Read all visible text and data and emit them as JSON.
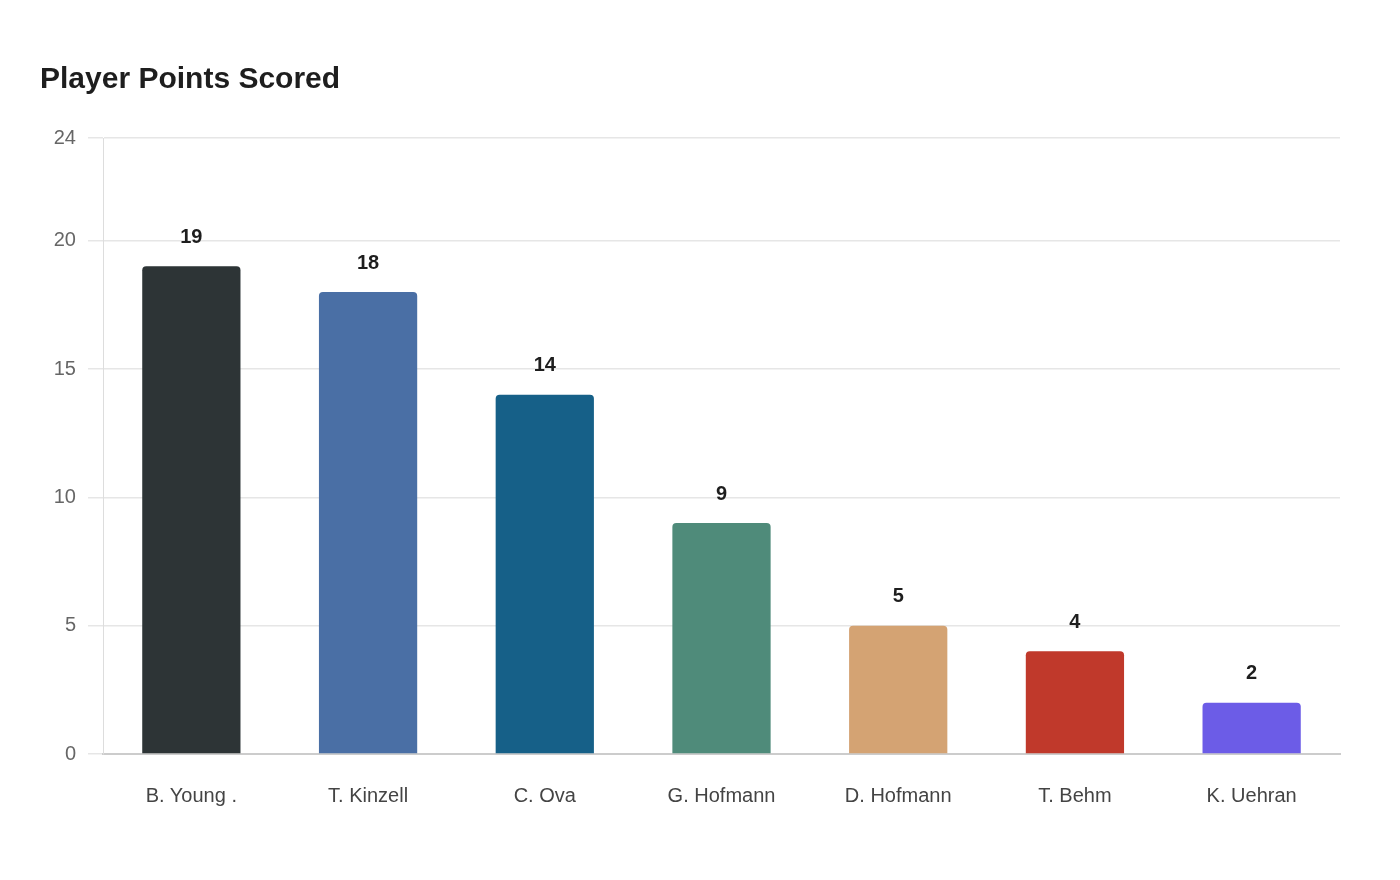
{
  "chart_data": {
    "type": "bar",
    "title": "Player Points Scored",
    "categories": [
      "B. Young .",
      "T. Kinzell",
      "C. Ova",
      "G. Hofmann",
      "D. Hofmann",
      "T. Behm",
      "K. Uehran"
    ],
    "values": [
      19,
      18,
      14,
      9,
      5,
      4,
      2
    ],
    "colors": [
      "#2d3436",
      "#4a6fa5",
      "#166088",
      "#4f8b7a",
      "#d4a373",
      "#c0392b",
      "#6c5ce7"
    ],
    "ylim": [
      0,
      24
    ],
    "yticks": [
      0,
      5,
      10,
      15,
      20,
      24
    ],
    "grid": "y",
    "data_labels": true
  }
}
